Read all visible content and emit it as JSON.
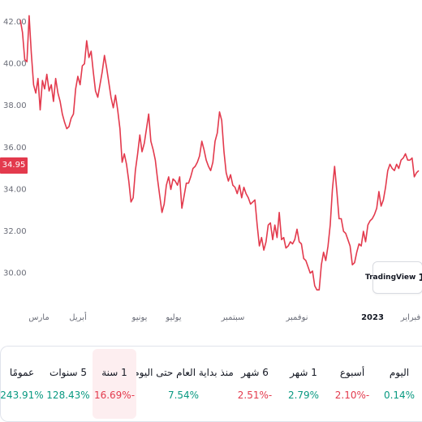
{
  "chart": {
    "current_price": "34.95",
    "line_color": "#e33a4d",
    "logo_text": "TradingView",
    "logo_mark": "17"
  },
  "chart_data": {
    "type": "line",
    "title": "",
    "xlabel": "",
    "ylabel": "",
    "ylim": [
      28.6,
      43.3
    ],
    "y_ticks": [
      "42.00",
      "40.00",
      "38.00",
      "36.00",
      "34.00",
      "32.00",
      "30.00"
    ],
    "x_ticks": [
      "مارس",
      "أبريل",
      "يونيو",
      "يوليو",
      "سبتمبر",
      "نوفمبر",
      "2023",
      "فبراير"
    ],
    "series": [
      {
        "values": [
          42.1,
          41.5,
          40.2,
          40.1,
          42.3,
          40.5,
          39.0,
          38.6,
          39.3,
          37.8,
          39.2,
          38.8,
          39.5,
          38.7,
          39.0,
          38.2,
          39.3,
          38.6,
          38.2,
          37.6,
          37.2,
          36.9,
          37.0,
          37.4,
          37.6,
          38.8,
          39.4,
          39.0,
          39.9,
          40.0,
          41.1,
          40.3,
          40.6,
          39.6,
          38.7,
          38.4,
          39.0,
          39.6,
          40.4,
          39.8,
          39.1,
          38.4,
          37.9,
          38.5,
          37.8,
          36.9,
          35.3,
          35.7,
          35.2,
          34.4,
          33.4,
          33.6,
          34.9,
          35.7,
          36.6,
          35.8,
          36.2,
          36.9,
          37.6,
          36.3,
          35.9,
          35.4,
          34.5,
          33.7,
          32.9,
          33.3,
          34.2,
          34.6,
          34.0,
          34.5,
          34.4,
          34.2,
          34.6,
          33.1,
          33.7,
          34.3,
          34.3,
          34.6,
          35.0,
          35.1,
          35.3,
          35.6,
          36.3,
          35.9,
          35.4,
          35.1,
          34.9,
          35.3,
          36.3,
          36.7,
          37.7,
          37.3,
          35.8,
          34.8,
          34.4,
          34.7,
          34.2,
          34.1,
          33.8,
          34.2,
          33.6,
          34.1,
          33.8,
          33.6,
          33.3,
          33.4,
          33.5,
          32.3,
          31.3,
          31.7,
          31.1,
          31.5,
          32.3,
          32.4,
          31.6,
          32.3,
          31.7,
          32.9,
          31.6,
          31.7,
          31.2,
          31.3,
          31.5,
          31.4,
          31.6,
          32.1,
          31.5,
          31.4,
          30.7,
          30.6,
          30.3,
          30.0,
          30.1,
          29.4,
          29.2,
          29.2,
          30.4,
          31.0,
          30.6,
          31.3,
          32.3,
          34.0,
          35.1,
          33.9,
          32.6,
          32.6,
          32.0,
          31.9,
          31.6,
          31.3,
          30.4,
          30.5,
          31.0,
          31.4,
          31.3,
          32.0,
          31.5,
          32.3,
          32.5,
          32.6,
          32.8,
          33.1,
          33.9,
          33.2,
          33.5,
          34.1,
          34.9,
          35.2,
          35.0,
          34.9,
          35.2,
          35.0,
          35.4,
          35.5,
          35.7,
          35.4,
          35.4,
          35.5,
          34.6,
          34.8,
          34.9
        ]
      }
    ],
    "grid": false
  },
  "performance": {
    "items": [
      {
        "label": "اليوم",
        "value": "0.14%",
        "tone": "pos",
        "active": false
      },
      {
        "label": "أسبوع",
        "value": "2.10%-",
        "tone": "neg",
        "active": false
      },
      {
        "label": "1 شهر",
        "value": "2.79%",
        "tone": "pos",
        "active": false
      },
      {
        "label": "6 شهر",
        "value": "2.51%-",
        "tone": "neg",
        "active": false
      },
      {
        "label": "منذ بداية العام حتى اليوم",
        "value": "7.54%",
        "tone": "pos",
        "active": false
      },
      {
        "label": "1 سنة",
        "value": "16.69%-",
        "tone": "neg",
        "active": true
      },
      {
        "label": "5 سنوات",
        "value": "128.43%",
        "tone": "pos",
        "active": false
      },
      {
        "label": "عمومًا",
        "value": "243.91%",
        "tone": "pos",
        "active": false
      }
    ]
  }
}
